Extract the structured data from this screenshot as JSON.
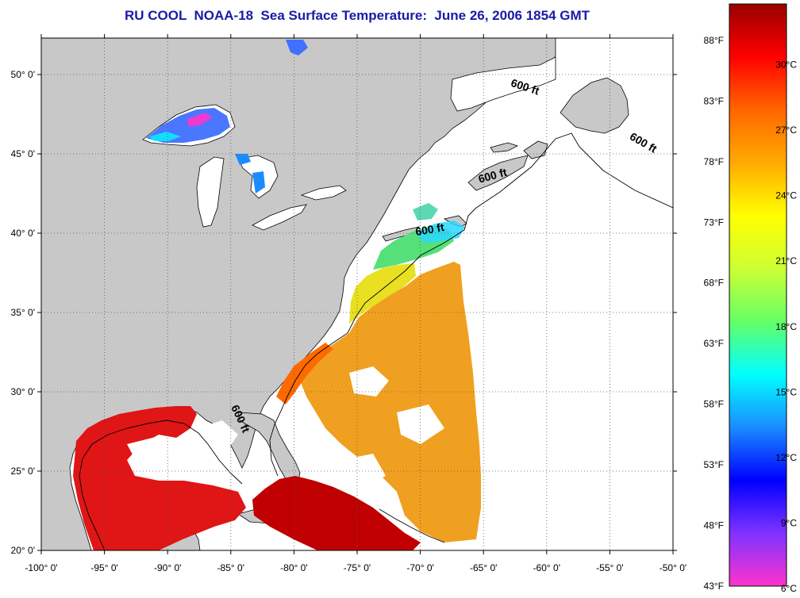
{
  "title": "RU COOL  NOAA-18  Sea Surface Temperature:  June 26, 2006 1854 GMT",
  "map": {
    "lon_range": [
      -100,
      -50
    ],
    "lat_range": [
      20,
      52.3
    ],
    "lon_ticks": [
      "-100° 0'",
      "-95° 0'",
      "-90° 0'",
      "-85° 0'",
      "-80° 0'",
      "-75° 0'",
      "-70° 0'",
      "-65° 0'",
      "-60° 0'",
      "-55° 0'",
      "-50° 0'"
    ],
    "lat_ticks": [
      "20° 0'",
      "25° 0'",
      "30° 0'",
      "35° 0'",
      "40° 0'",
      "45° 0'",
      "50° 0'"
    ],
    "land_color": "#c8c8c8",
    "ocean_color": "#ffffff",
    "depth_contour_label": "600 ft",
    "depth_labels": [
      {
        "text": "600 ft",
        "lon": -61.8,
        "lat": 49.0,
        "angle": 18
      },
      {
        "text": "600 ft",
        "lon": -52.5,
        "lat": 45.5,
        "angle": 30
      },
      {
        "text": "600 ft",
        "lon": -64.2,
        "lat": 43.4,
        "angle": -15
      },
      {
        "text": "600 ft",
        "lon": -69.2,
        "lat": 40.0,
        "angle": -10
      },
      {
        "text": "600 ft",
        "lon": -84.5,
        "lat": 28.2,
        "angle": 65
      }
    ]
  },
  "colorbar": {
    "fahrenheit_labels": [
      "88°F",
      "83°F",
      "78°F",
      "73°F",
      "68°F",
      "63°F",
      "58°F",
      "53°F",
      "48°F",
      "43°F"
    ],
    "celsius_labels": [
      "30°C",
      "27°C",
      "24°C",
      "21°C",
      "18°C",
      "15°C",
      "12°C",
      "9°C",
      "6°C"
    ],
    "range_f": [
      43,
      91
    ],
    "stops": [
      "#ff33cc",
      "#7f33ff",
      "#0000ff",
      "#1a8cff",
      "#00ffff",
      "#66ff66",
      "#ccff33",
      "#ffff00",
      "#ffaa00",
      "#ff6600",
      "#ff0000",
      "#990000"
    ]
  },
  "sst_regions": {
    "gulf_color": "#e01515",
    "caribbean_color": "#c00000",
    "atlantic_color": "#f0a020",
    "se_coast_color": "#ff6a00",
    "mid_atlantic_color": "#e8e020",
    "new_england_color": "#55e07a",
    "georges_color": "#2ad7ff",
    "lake_superior_color": "#4070ff"
  }
}
